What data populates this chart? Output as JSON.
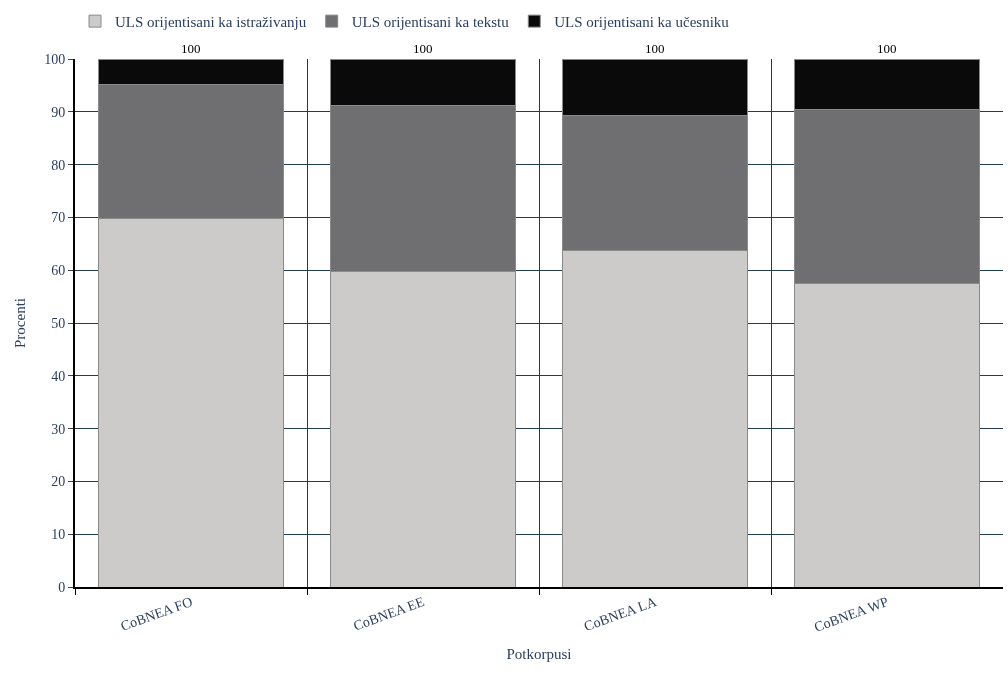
{
  "chart_data": {
    "type": "bar",
    "stacked": true,
    "xlabel": "Potkorpusi",
    "ylabel": "Procenti",
    "categories": [
      "CoBNEA FO",
      "CoBNEA EE",
      "CoBNEA LA",
      "CoBNEA WP"
    ],
    "series": [
      {
        "name": "ULS orijentisani ka istraživanju",
        "color": "#cdcaca",
        "values": [
          69.8,
          59.7,
          63.7,
          57.4
        ]
      },
      {
        "name": "ULS orijentisani ka tekstu",
        "color": "#6f6e70",
        "values": [
          25.4,
          31.5,
          25.6,
          33.0
        ]
      },
      {
        "name": "ULS orijentisani ka učesniku",
        "color": "#0a0a0a",
        "values": [
          4.8,
          8.8,
          10.7,
          9.6
        ]
      }
    ],
    "totals": [
      "100",
      "100",
      "100",
      "100"
    ],
    "ylim": [
      0,
      100
    ],
    "yticks": [
      0,
      10,
      20,
      30,
      40,
      50,
      60,
      70,
      80,
      90,
      100
    ],
    "grid": true,
    "legend": "top"
  }
}
